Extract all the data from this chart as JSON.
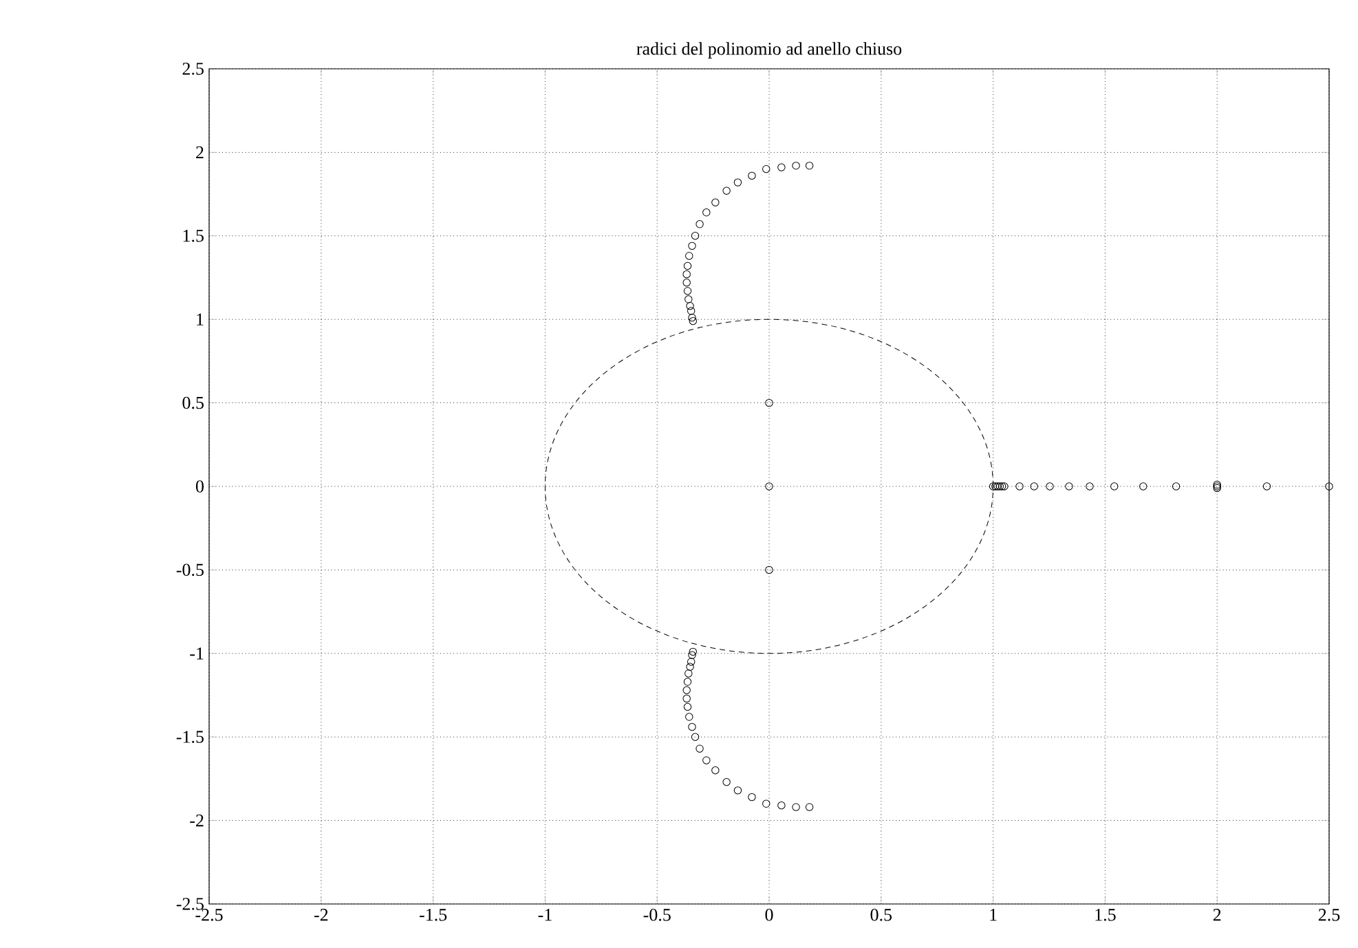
{
  "chart_data": {
    "type": "scatter",
    "title": "radici del polinomio ad anello chiuso",
    "xlim": [
      -2.5,
      2.5
    ],
    "ylim": [
      -2.5,
      2.5
    ],
    "xticks": [
      -2.5,
      -2,
      -1.5,
      -1,
      -0.5,
      0,
      0.5,
      1,
      1.5,
      2,
      2.5
    ],
    "yticks": [
      -2.5,
      -2,
      -1.5,
      -1,
      -0.5,
      0,
      0.5,
      1,
      1.5,
      2,
      2.5
    ],
    "grid": true,
    "series": [
      {
        "marker": "circle",
        "color": "#000000",
        "x": [
          0.18,
          0.12,
          0.055,
          -0.013,
          -0.077,
          -0.14,
          -0.19,
          -0.24,
          -0.28,
          -0.31,
          -0.33,
          -0.344,
          -0.357,
          -0.364,
          -0.368,
          -0.368,
          -0.364,
          -0.36,
          -0.353,
          -0.348,
          -0.344,
          -0.34
        ],
        "values": [
          1.92,
          1.92,
          1.91,
          1.9,
          1.86,
          1.82,
          1.77,
          1.7,
          1.64,
          1.57,
          1.5,
          1.44,
          1.38,
          1.32,
          1.27,
          1.22,
          1.17,
          1.12,
          1.08,
          1.05,
          1.01,
          0.99
        ]
      },
      {
        "marker": "circle",
        "color": "#000000",
        "x": [
          0.18,
          0.12,
          0.055,
          -0.013,
          -0.077,
          -0.14,
          -0.19,
          -0.24,
          -0.28,
          -0.31,
          -0.33,
          -0.344,
          -0.357,
          -0.364,
          -0.368,
          -0.368,
          -0.364,
          -0.36,
          -0.353,
          -0.348,
          -0.344,
          -0.34
        ],
        "values": [
          -1.92,
          -1.92,
          -1.91,
          -1.9,
          -1.86,
          -1.82,
          -1.77,
          -1.7,
          -1.64,
          -1.57,
          -1.5,
          -1.44,
          -1.38,
          -1.32,
          -1.27,
          -1.22,
          -1.17,
          -1.12,
          -1.08,
          -1.05,
          -1.01,
          -0.99
        ]
      },
      {
        "marker": "circle",
        "color": "#000000",
        "x": [
          0,
          0,
          0,
          1.0,
          1.01,
          1.02,
          1.03,
          1.04,
          1.05,
          1.118,
          1.183,
          1.253,
          1.339,
          1.431,
          1.541,
          1.67,
          1.817,
          2.0,
          2.0,
          2.0,
          2.222,
          2.5
        ],
        "values": [
          0.5,
          0,
          -0.5,
          0,
          0,
          0,
          0,
          0,
          0,
          0,
          0,
          0,
          0,
          0,
          0,
          0,
          0,
          0.01,
          0,
          -0.01,
          0,
          0
        ]
      }
    ]
  }
}
